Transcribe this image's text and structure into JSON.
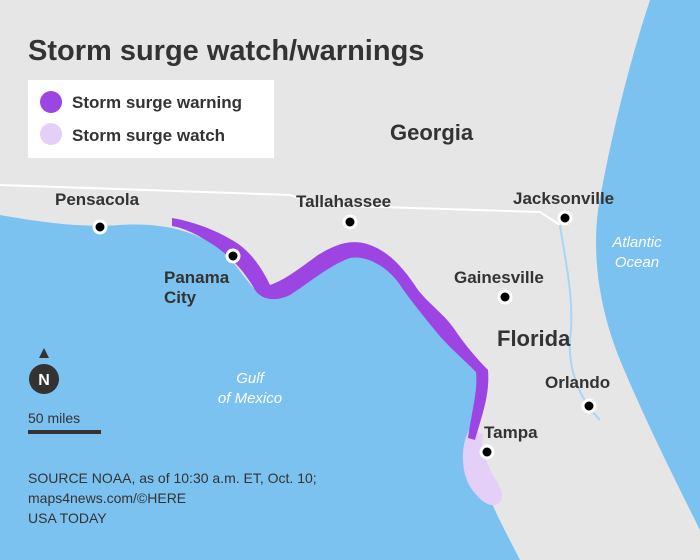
{
  "title": "Storm surge watch/warnings",
  "legend": {
    "items": [
      {
        "label": "Storm surge warning",
        "color": "#9d45e3"
      },
      {
        "label": "Storm surge watch",
        "color": "#e3cff8"
      }
    ]
  },
  "places": {
    "states": [
      "Georgia",
      "Florida"
    ],
    "cities": [
      "Pensacola",
      "Tallahassee",
      "Jacksonville",
      "Panama City",
      "Gainesville",
      "Orlando",
      "Tampa"
    ],
    "waters": [
      "Atlantic Ocean",
      "Gulf of Mexico"
    ]
  },
  "north": "N",
  "scale": "50 miles",
  "source": [
    "SOURCE NOAA, as of 10:30 a.m. ET, Oct. 10;",
    "maps4news.com/©HERE",
    "USA TODAY"
  ]
}
